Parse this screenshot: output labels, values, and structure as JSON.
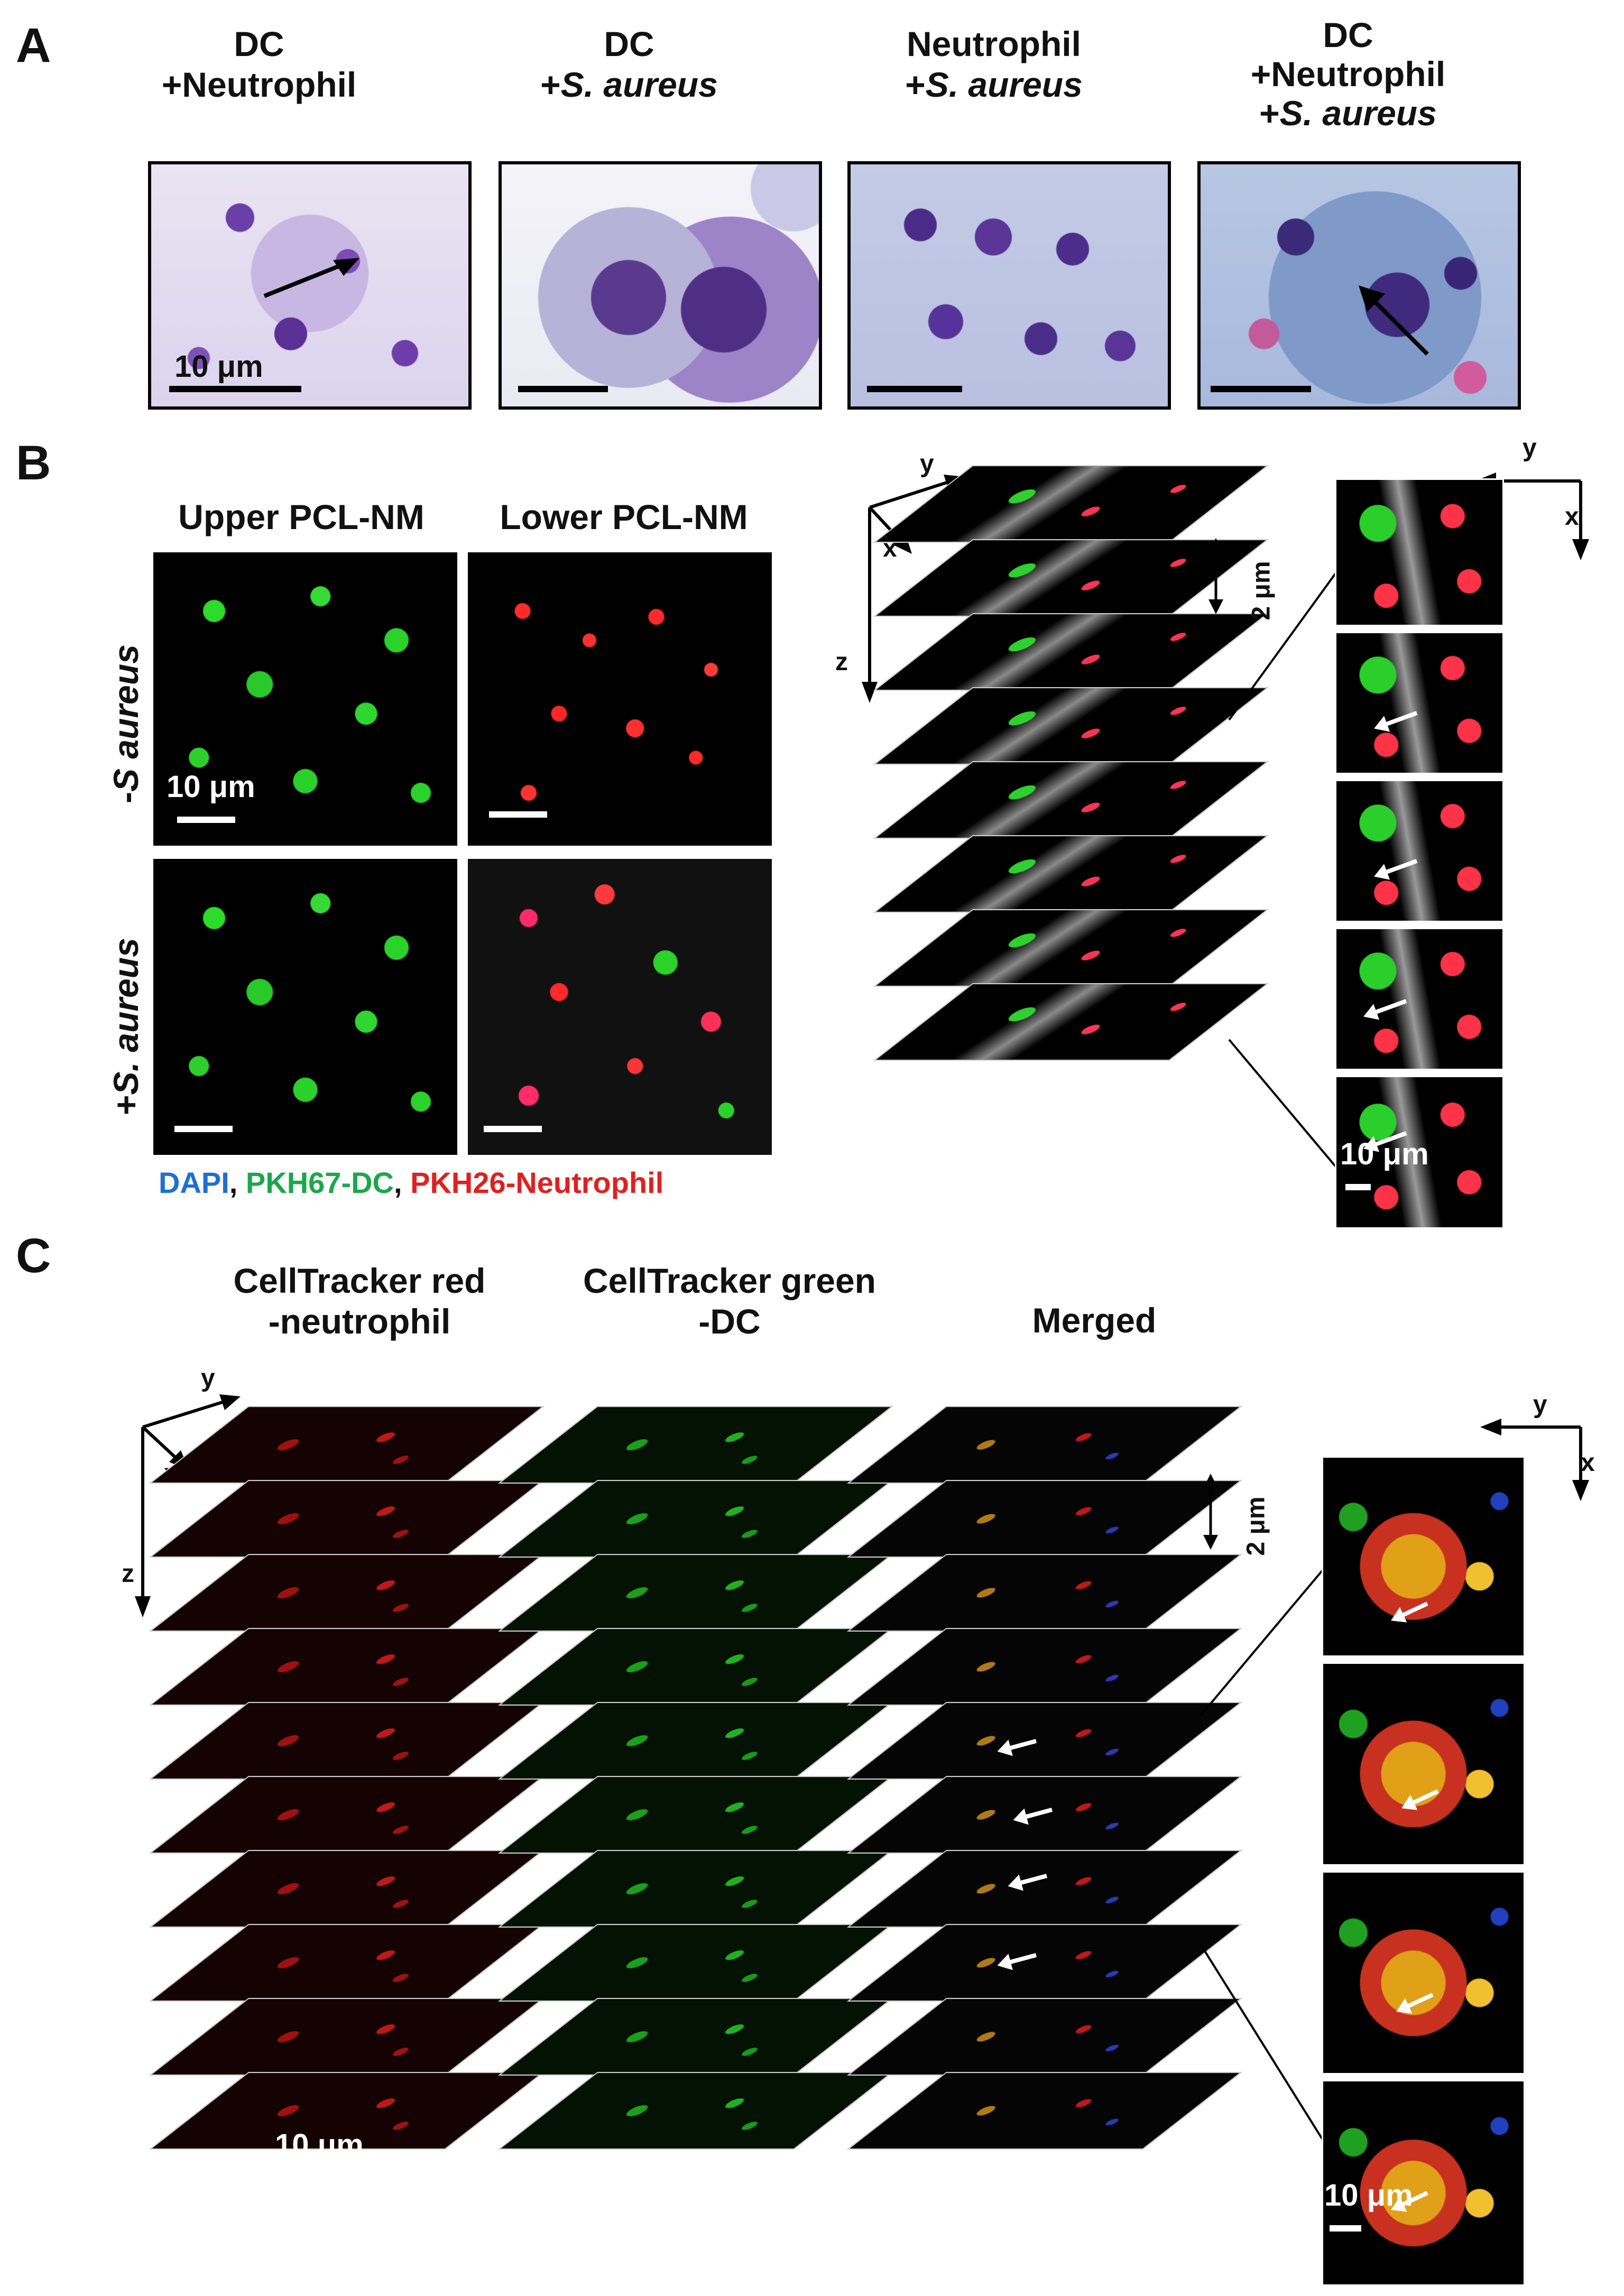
{
  "panels": {
    "A": {
      "letter": "A",
      "titles": [
        {
          "line1": "DC",
          "line2": "+Neutrophil",
          "line3": ""
        },
        {
          "line1": "DC",
          "line2": "+",
          "line2_italic": "S. aureus",
          "line3": ""
        },
        {
          "line1": "Neutrophil",
          "line2": "+",
          "line2_italic": "S. aureus",
          "line3": ""
        },
        {
          "line1": "DC",
          "line2": "+Neutrophil",
          "line3": "+",
          "line3_italic": "S. aureus"
        }
      ],
      "scale_label": "10 μm"
    },
    "B": {
      "letter": "B",
      "col_upper": "Upper PCL-NM",
      "col_lower": "Lower PCL-NM",
      "row_minus_prefix": "-",
      "row_minus_italic": "S aureus",
      "row_plus_prefix": "+",
      "row_plus_italic": "S. aureus",
      "scale_label": "10 μm",
      "legend_dapi": "DAPI",
      "legend_sep1": ", ",
      "legend_pkh67": "PKH67-DC",
      "legend_sep2": ", ",
      "legend_pkh26": "PKH26-Neutrophil",
      "stack_scale": "10 μm",
      "zoom_scale": "10 μm",
      "z_step": "2 μm",
      "axis_x": "x",
      "axis_y": "y",
      "axis_z": "z",
      "zoom_axis_x": "x",
      "zoom_axis_y": "y"
    },
    "C": {
      "letter": "C",
      "col_red_line1": "CellTracker red",
      "col_red_line2": "-neutrophil",
      "col_green_line1": "CellTracker green",
      "col_green_line2": "-DC",
      "col_merged": "Merged",
      "scale_label": "10 μm",
      "zoom_scale": "10 μm",
      "z_step": "2 μm",
      "axis_x": "x",
      "axis_y": "y",
      "axis_z": "z",
      "zoom_axis_x": "x",
      "zoom_axis_y": "y"
    }
  },
  "colors": {
    "dapi": "#1f6fd1",
    "pkh67": "#1aa84a",
    "pkh26": "#e02020"
  }
}
